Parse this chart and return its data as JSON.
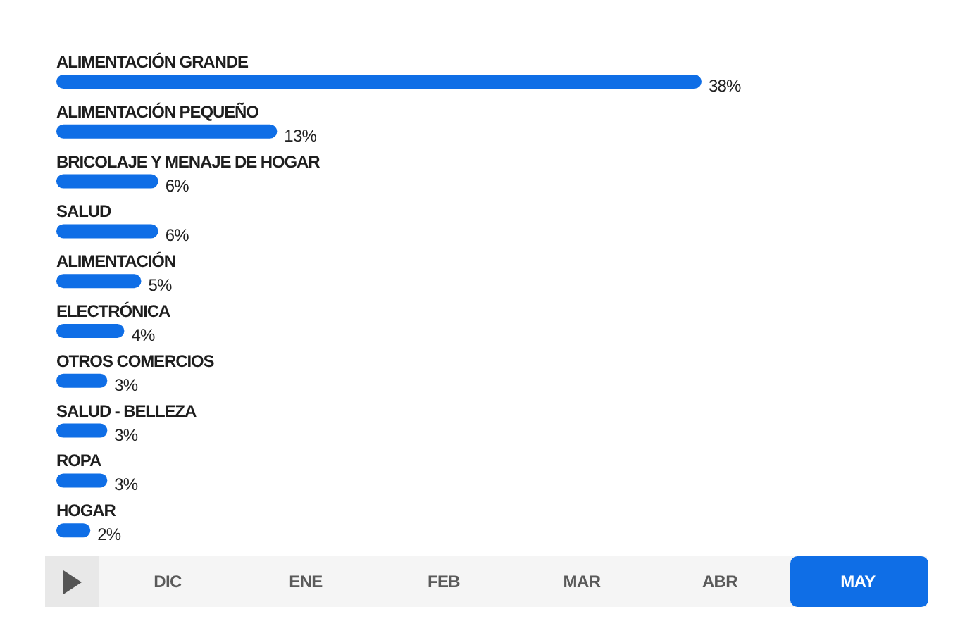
{
  "chart_data": {
    "type": "bar",
    "orientation": "horizontal",
    "categories": [
      "ALIMENTACIÓN GRANDE",
      "ALIMENTACIÓN PEQUEÑO",
      "BRICOLAJE Y MENAJE DE HOGAR",
      "SALUD",
      "ALIMENTACIÓN",
      "ELECTRÓNICA",
      "OTROS COMERCIOS",
      "SALUD - BELLEZA",
      "ROPA",
      "HOGAR"
    ],
    "values": [
      38,
      13,
      6,
      6,
      5,
      4,
      3,
      3,
      3,
      2
    ],
    "value_labels": [
      "38%",
      "13%",
      "6%",
      "6%",
      "5%",
      "4%",
      "3%",
      "3%",
      "3%",
      "2%"
    ],
    "color": "#0f6ee6",
    "annotations": [
      "DIC",
      "ENE",
      "FEB",
      "MAR",
      "ABR",
      "MAY"
    ]
  }
}
